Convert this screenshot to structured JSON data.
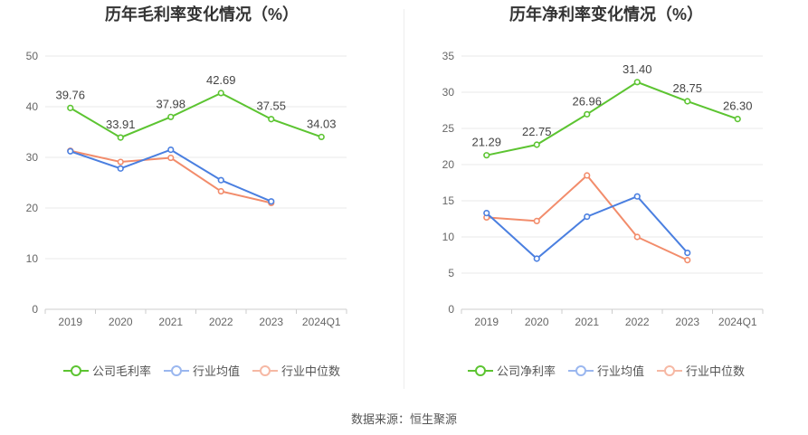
{
  "source": "数据来源：恒生聚源",
  "chart_data": [
    {
      "type": "line",
      "title": "历年毛利率变化情况（%）",
      "categories": [
        "2019",
        "2020",
        "2021",
        "2022",
        "2023",
        "2024Q1"
      ],
      "ylim": [
        0,
        50
      ],
      "yticks": [
        0,
        10,
        20,
        30,
        40,
        50
      ],
      "grid": true,
      "legend_position": "bottom",
      "series": [
        {
          "name": "公司毛利率",
          "color": "#5cc431",
          "values": [
            39.76,
            33.91,
            37.98,
            42.69,
            37.55,
            34.03
          ],
          "labels": [
            "39.76",
            "33.91",
            "37.98",
            "42.69",
            "37.55",
            "34.03"
          ]
        },
        {
          "name": "行业均值",
          "color": "#4a7fe0",
          "values": [
            31.2,
            27.8,
            31.5,
            25.5,
            21.3,
            null
          ]
        },
        {
          "name": "行业中位数",
          "color": "#f28c6b",
          "values": [
            31.3,
            29.1,
            29.9,
            23.3,
            21.0,
            null
          ]
        }
      ]
    },
    {
      "type": "line",
      "title": "历年净利率变化情况（%）",
      "categories": [
        "2019",
        "2020",
        "2021",
        "2022",
        "2023",
        "2024Q1"
      ],
      "ylim": [
        0,
        35
      ],
      "yticks": [
        0,
        5,
        10,
        15,
        20,
        25,
        30,
        35
      ],
      "grid": true,
      "legend_position": "bottom",
      "series": [
        {
          "name": "公司净利率",
          "color": "#5cc431",
          "values": [
            21.29,
            22.75,
            26.96,
            31.4,
            28.75,
            26.3
          ],
          "labels": [
            "21.29",
            "22.75",
            "26.96",
            "31.40",
            "28.75",
            "26.30"
          ]
        },
        {
          "name": "行业均值",
          "color": "#4a7fe0",
          "values": [
            13.3,
            7.0,
            12.8,
            15.6,
            7.8,
            null
          ]
        },
        {
          "name": "行业中位数",
          "color": "#f28c6b",
          "values": [
            12.7,
            12.2,
            18.5,
            10.0,
            6.8,
            null
          ]
        }
      ]
    }
  ]
}
